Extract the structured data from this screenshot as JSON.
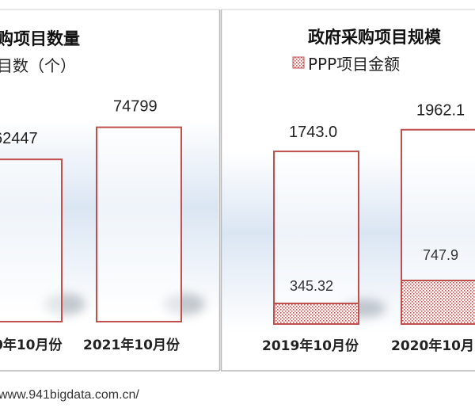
{
  "chart_data": [
    {
      "type": "bar",
      "title": "购项目数量",
      "legend": [
        {
          "label": "目数（个）"
        }
      ],
      "categories": [
        "0年10月份",
        "2021年10月份"
      ],
      "series": [
        {
          "values": [
            62447,
            74799
          ]
        }
      ],
      "value_labels": [
        "62447",
        "74799"
      ],
      "ylim": [
        0,
        100000
      ],
      "grid": false
    },
    {
      "type": "bar",
      "title": "政府采购项目规模",
      "legend": [
        {
          "label": "PPP项目金额",
          "pattern": "dotted-red"
        }
      ],
      "categories": [
        "2019年10月份",
        "2020年10月"
      ],
      "series": [
        {
          "values": [
            1743.0,
            1962.1
          ]
        },
        {
          "values": [
            345.32,
            747.9
          ]
        }
      ],
      "value_labels": [
        "1743.0",
        "1962.1"
      ],
      "inner_labels": [
        "345.32",
        "747.9"
      ],
      "ylim": [
        0,
        4000
      ],
      "grid": false
    }
  ],
  "colors": {
    "bar_outline": "#c0504d",
    "pattern_dot": "#c0504d",
    "panel_border": "#b8b8b8"
  },
  "footer": {
    "source": "www.941bigdata.com.cn/"
  }
}
